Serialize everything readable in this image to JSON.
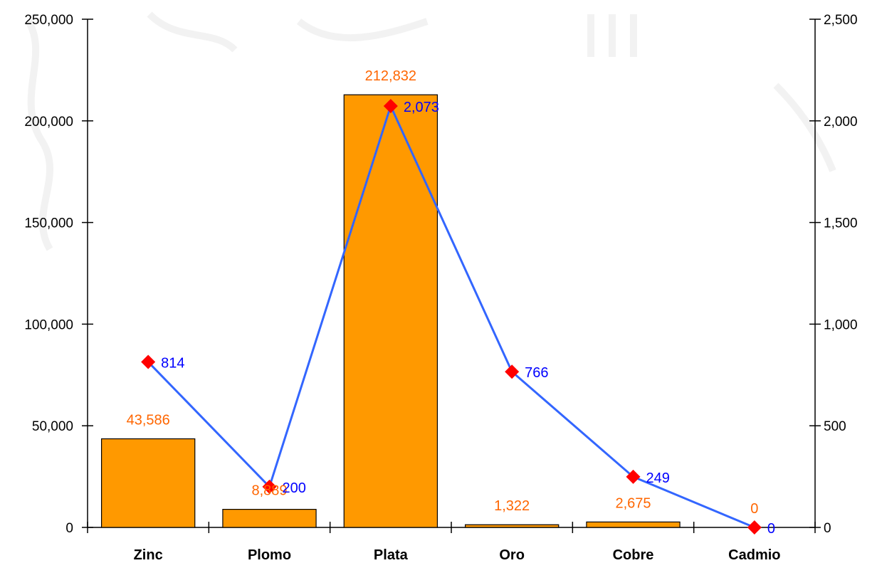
{
  "chart_data": {
    "type": "bar",
    "categories": [
      "Zinc",
      "Plomo",
      "Plata",
      "Oro",
      "Cobre",
      "Cadmio"
    ],
    "series": [
      {
        "type": "bar",
        "axis": "left",
        "values": [
          43586,
          8889,
          212832,
          1322,
          2675,
          0
        ],
        "labels": [
          "43,586",
          "8,889",
          "212,832",
          "1,322",
          "2,675",
          "0"
        ],
        "color": "#FF9900",
        "label_color": "#FF6600"
      },
      {
        "type": "line",
        "axis": "right",
        "values": [
          814,
          200,
          2073,
          766,
          249,
          0
        ],
        "labels": [
          "814",
          "200",
          "2,073",
          "766",
          "249",
          "0"
        ],
        "color": "#3366FF",
        "marker_color": "#FF0000",
        "label_color": "#0000FF"
      }
    ],
    "y_left": {
      "ylim": [
        0,
        250000
      ],
      "ticks": [
        0,
        50000,
        100000,
        150000,
        200000,
        250000
      ],
      "tick_labels": [
        "0",
        "50,000",
        "100,000",
        "150,000",
        "200,000",
        "250,000"
      ]
    },
    "y_right": {
      "ylim": [
        0,
        2500
      ],
      "ticks": [
        0,
        500,
        1000,
        1500,
        2000,
        2500
      ],
      "tick_labels": [
        "0",
        "500",
        "1,000",
        "1,500",
        "2,000",
        "2,500"
      ]
    },
    "grid": false,
    "legend": "none"
  }
}
